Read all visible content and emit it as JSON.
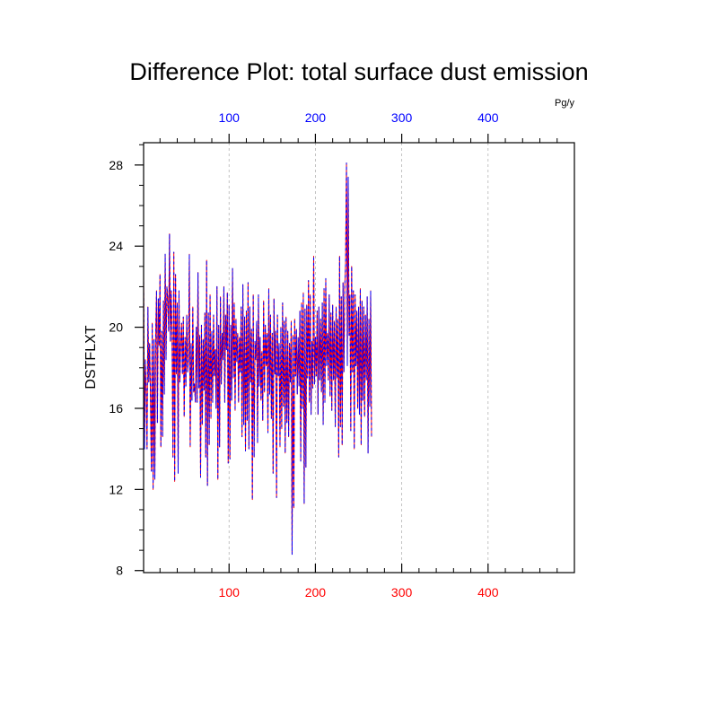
{
  "chart_data": {
    "type": "line",
    "title": "Difference Plot: total surface dust emission",
    "units": "Pg/y",
    "ylabel": "DSTFLXT",
    "xlim": [
      1,
      500
    ],
    "ylim": [
      7.9,
      29.1
    ],
    "x_ticks_bottom": [
      100,
      200,
      300,
      400
    ],
    "x_ticks_top": [
      100,
      200,
      300,
      400
    ],
    "y_ticks": [
      8,
      12,
      16,
      20,
      24,
      28
    ],
    "bottom_tick_color": "#ff0000",
    "top_tick_color": "#0000ff",
    "vertical_grid": true,
    "series_colors": [
      "#ff0000",
      "#0000ff"
    ],
    "x_start": 1,
    "x_step": 1,
    "values": [
      22.5,
      14.0,
      18.4,
      16.8,
      14.0,
      21.0,
      17.3,
      19.2,
      16.5,
      12.9,
      20.2,
      12.0,
      19.4,
      12.5,
      19.6,
      21.8,
      15.3,
      21.4,
      19.1,
      22.6,
      14.1,
      19.8,
      14.6,
      21.3,
      16.7,
      23.6,
      18.4,
      22.0,
      21.4,
      19.8,
      24.6,
      19.3,
      21.8,
      19.5,
      13.6,
      23.7,
      12.4,
      22.6,
      17.7,
      21.2,
      12.8,
      21.8,
      17.3,
      19.2,
      20.2,
      17.7,
      20.5,
      15.6,
      19.5,
      17.1,
      20.6,
      17.8,
      18.4,
      23.6,
      14.1,
      19.2,
      16.4,
      21.0,
      16.8,
      17.2,
      16.3,
      20.0,
      16.3,
      22.7,
      17.0,
      19.6,
      12.6,
      20.1,
      15.2,
      19.4,
      16.9,
      20.7,
      13.6,
      23.3,
      12.2,
      20.7,
      14.2,
      21.6,
      15.5,
      19.8,
      16.3,
      20.6,
      17.6,
      18.9,
      16.0,
      22.0,
      12.5,
      20.1,
      14.1,
      21.5,
      17.2,
      19.7,
      18.4,
      22.0,
      16.3,
      20.6,
      18.9,
      21.7,
      13.3,
      21.1,
      13.5,
      20.1,
      16.4,
      22.9,
      17.5,
      21.2,
      15.9,
      20.4,
      18.3,
      19.7,
      16.3,
      19.5,
      17.8,
      21.0,
      14.6,
      22.1,
      15.2,
      20.5,
      13.9,
      20.8,
      15.4,
      22.2,
      14.0,
      21.0,
      17.3,
      19.9,
      11.5,
      21.6,
      13.6,
      19.3,
      18.4,
      20.3,
      14.3,
      21.6,
      17.1,
      19.5,
      16.4,
      18.8,
      15.4,
      21.3,
      16.8,
      20.1,
      18.1,
      19.7,
      14.8,
      21.9,
      16.7,
      20.6,
      15.5,
      19.7,
      12.8,
      21.4,
      17.7,
      19.8,
      11.6,
      20.6,
      17.6,
      19.2,
      14.1,
      20.0,
      15.0,
      21.2,
      16.1,
      20.3,
      13.8,
      20.5,
      15.3,
      19.8,
      14.6,
      19.2,
      17.3,
      20.3,
      8.8,
      19.6,
      11.1,
      20.4,
      17.6,
      19.9,
      16.7,
      19.5,
      17.1,
      20.8,
      13.4,
      21.2,
      16.0,
      21.7,
      11.3,
      20.9,
      13.1,
      21.1,
      17.5,
      22.3,
      16.3,
      21.6,
      15.7,
      19.3,
      17.0,
      23.5,
      17.2,
      19.5,
      17.6,
      20.8,
      15.7,
      21.0,
      17.4,
      20.4,
      16.8,
      21.2,
      15.2,
      21.9,
      16.3,
      22.4,
      18.1,
      19.7,
      17.4,
      21.6,
      16.6,
      20.7,
      15.9,
      21.1,
      17.4,
      20.3,
      15.1,
      21.0,
      17.5,
      20.4,
      13.6,
      23.5,
      15.1,
      21.5,
      14.2,
      22.2,
      17.8,
      21.9,
      23.2,
      28.1,
      18.1,
      27.4,
      19.6,
      21.6,
      14.9,
      23.0,
      17.8,
      21.8,
      14.0,
      21.6,
      18.1,
      20.8,
      16.0,
      21.0,
      15.7,
      21.9,
      14.2,
      21.3,
      16.4,
      21.0,
      15.6,
      20.6,
      17.4,
      21.5,
      13.8,
      20.4,
      16.1,
      21.8,
      14.6
    ]
  }
}
